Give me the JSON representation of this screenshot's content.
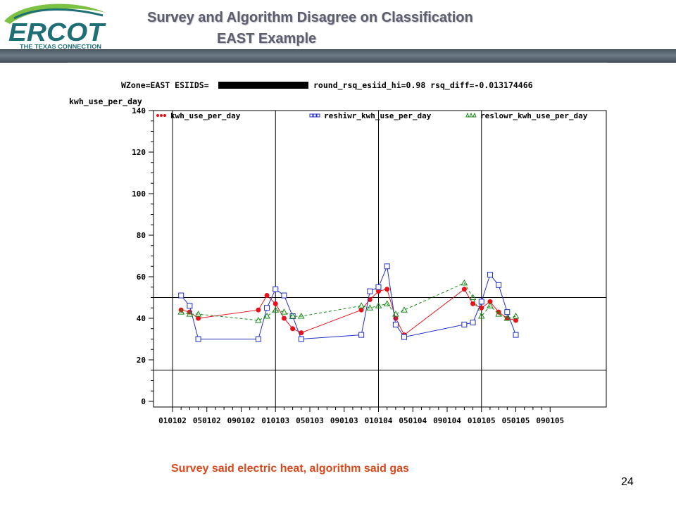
{
  "slide": {
    "title_line1": "Survey and Algorithm Disagree on Classification",
    "title_line2": "EAST Example",
    "caption": "Survey said electric heat, algorithm said gas",
    "page_number": "24"
  },
  "logo": {
    "name": "ERCOT",
    "tagline": "THE TEXAS CONNECTION",
    "colors": {
      "teal": "#1f6f76",
      "green": "#7cc242",
      "white": "#ffffff"
    }
  },
  "chart_data": {
    "type": "line",
    "title_prefix": "WZone=EAST ESIIDS=",
    "title_suffix": "round_rsq_esiid_hi=0.98 rsq_diff=-0.013174466",
    "ylabel": "kwh_use_per_day",
    "ylim": [
      0,
      140
    ],
    "y_ticks": [
      0,
      20,
      40,
      60,
      80,
      100,
      120,
      140
    ],
    "x_ticks": [
      "010102",
      "050102",
      "090102",
      "010103",
      "050103",
      "090103",
      "010104",
      "050104",
      "090104",
      "010105",
      "050105",
      "090105"
    ],
    "x_range_month_index": [
      0,
      48
    ],
    "vertical_ref_lines_month_index": [
      12,
      24,
      36
    ],
    "horizontal_ref_lines": [
      50,
      15
    ],
    "legend_position": "top",
    "series": [
      {
        "name": "kwh_use_per_day",
        "color": "#e8121b",
        "marker": "dot",
        "line_style": "solid",
        "x": [
          1,
          2,
          3,
          10,
          11,
          12,
          13,
          14,
          15,
          22,
          23,
          24,
          25,
          26,
          27,
          34,
          35,
          36,
          37,
          38,
          39,
          40
        ],
        "y": [
          44,
          43,
          40,
          44,
          51,
          47,
          40,
          35,
          33,
          44,
          49,
          53,
          54,
          40,
          32,
          54,
          47,
          45,
          48,
          43,
          40,
          39
        ]
      },
      {
        "name": "reshiwr_kwh_use_per_day",
        "color": "#1f2ec8",
        "marker": "square",
        "line_style": "solid",
        "x": [
          1,
          2,
          3,
          10,
          11,
          12,
          13,
          14,
          15,
          22,
          23,
          24,
          25,
          26,
          27,
          34,
          35,
          36,
          37,
          38,
          39,
          40
        ],
        "y": [
          51,
          46,
          30,
          30,
          45,
          54,
          51,
          41,
          30,
          32,
          53,
          55,
          65,
          37,
          31,
          37,
          38,
          48,
          61,
          56,
          43,
          32
        ]
      },
      {
        "name": "reslowr_kwh_use_per_day",
        "color": "#1a8a1a",
        "marker": "triangle",
        "line_style": "dashed",
        "x": [
          1,
          2,
          3,
          10,
          11,
          12,
          13,
          14,
          15,
          22,
          23,
          24,
          25,
          26,
          27,
          34,
          35,
          36,
          37,
          38,
          39,
          40
        ],
        "y": [
          43,
          42,
          42,
          39,
          41,
          44,
          43,
          41,
          41,
          46,
          45,
          46,
          47,
          42,
          44,
          57,
          50,
          41,
          46,
          42,
          40,
          41
        ]
      }
    ]
  }
}
